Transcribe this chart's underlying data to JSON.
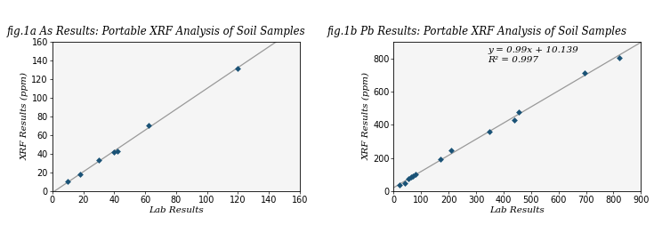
{
  "fig1a_title": "fig.1a As Results: Portable XRF Analysis of Soil Samples",
  "fig1b_title": "fig.1b Pb Results: Portable XRF Analysis of Soil Samples",
  "as_lab": [
    10,
    18,
    30,
    40,
    42,
    62,
    120
  ],
  "as_xrf": [
    10,
    18,
    33,
    42,
    43,
    70,
    132
  ],
  "pb_lab": [
    20,
    40,
    55,
    65,
    70,
    80,
    170,
    210,
    350,
    440,
    455,
    695,
    820
  ],
  "pb_xrf": [
    35,
    45,
    75,
    85,
    90,
    100,
    190,
    245,
    360,
    430,
    475,
    715,
    805
  ],
  "pb_equation": "y = 0.99x + 10.139",
  "pb_r2": "R² = 0.997",
  "xlabel": "Lab Results",
  "ylabel": "XRF Results (ppm)",
  "dot_color": "#1a5276",
  "line_color": "#999999",
  "title_fontsize": 8.5,
  "axis_label_fontsize": 7.5,
  "tick_fontsize": 7,
  "annotation_fontsize": 7.5,
  "fig1a_xlim": [
    0,
    160
  ],
  "fig1a_ylim": [
    0,
    160
  ],
  "fig1a_xticks": [
    0,
    20,
    40,
    60,
    80,
    100,
    120,
    140,
    160
  ],
  "fig1a_yticks": [
    0,
    20,
    40,
    60,
    80,
    100,
    120,
    140,
    160
  ],
  "fig1b_xlim": [
    0,
    900
  ],
  "fig1b_ylim": [
    0,
    900
  ],
  "fig1b_xticks": [
    0,
    100,
    200,
    300,
    400,
    500,
    600,
    700,
    800,
    900
  ],
  "fig1b_yticks": [
    0,
    200,
    400,
    600,
    800
  ],
  "bg_color": "#f5f5f5"
}
